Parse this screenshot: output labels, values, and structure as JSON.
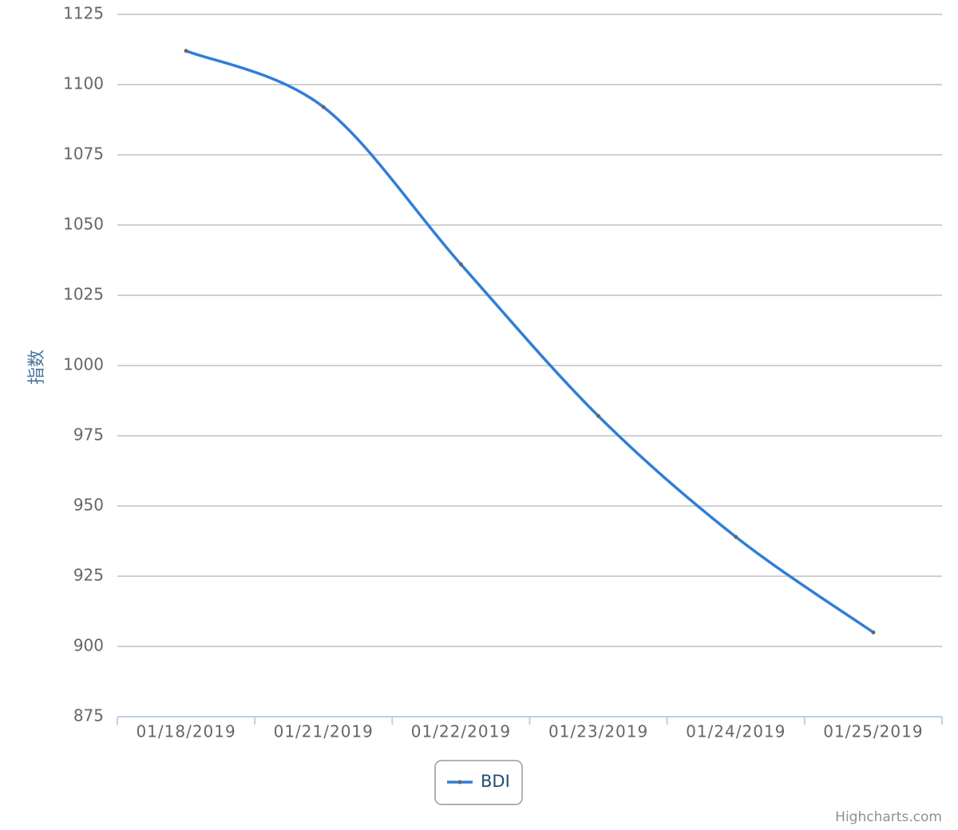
{
  "chart_data": {
    "type": "line",
    "smooth": true,
    "y_label": "指数",
    "categories": [
      "01/18/2019",
      "01/21/2019",
      "01/22/2019",
      "01/23/2019",
      "01/24/2019",
      "01/25/2019"
    ],
    "series": [
      {
        "name": "BDI",
        "color": "#2f7ed8",
        "values": [
          1112,
          1092,
          1036,
          982,
          939,
          905
        ]
      }
    ],
    "ylim": [
      875,
      1125
    ],
    "yticks": [
      875,
      900,
      925,
      950,
      975,
      1000,
      1025,
      1050,
      1075,
      1100,
      1125
    ],
    "grid": true,
    "legend": "bottom",
    "credit": "Highcharts.com"
  }
}
